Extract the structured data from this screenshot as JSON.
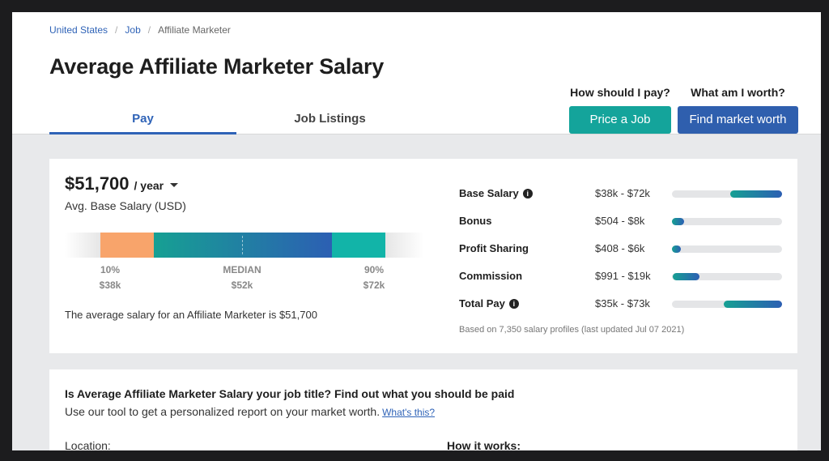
{
  "breadcrumb": {
    "items": [
      "United States",
      "Job"
    ],
    "current": "Affiliate Marketer",
    "separator": "/"
  },
  "page": {
    "title": "Average Affiliate Marketer Salary"
  },
  "tabs": [
    {
      "label": "Pay",
      "active": true
    },
    {
      "label": "Job Listings",
      "active": false
    }
  ],
  "cta": {
    "price": {
      "question": "How should I pay?",
      "button": "Price a Job",
      "color": "#14a49b"
    },
    "worth": {
      "question": "What am I worth?",
      "button": "Find market worth",
      "color": "#2f5fae"
    }
  },
  "summary": {
    "salary": "$51,700",
    "period": "/ year",
    "avg_label": "Avg. Base Salary (USD)",
    "range_ticks": [
      {
        "label": "10%",
        "value": "$38k"
      },
      {
        "label": "MEDIAN",
        "value": "$52k"
      },
      {
        "label": "90%",
        "value": "$72k"
      }
    ],
    "average_text": "The average salary for an Affiliate Marketer is $51,700"
  },
  "breakdown": {
    "rows": [
      {
        "label": "Base Salary",
        "info": true,
        "value": "$38k - $72k",
        "bar_start": 0.53,
        "bar_end": 1.0
      },
      {
        "label": "Bonus",
        "info": false,
        "value": "$504 - $8k",
        "bar_start": 0.0,
        "bar_end": 0.11
      },
      {
        "label": "Profit Sharing",
        "info": false,
        "value": "$408 - $6k",
        "bar_start": 0.0,
        "bar_end": 0.08
      },
      {
        "label": "Commission",
        "info": false,
        "value": "$991 - $19k",
        "bar_start": 0.01,
        "bar_end": 0.25
      },
      {
        "label": "Total Pay",
        "info": true,
        "value": "$35k - $73k",
        "bar_start": 0.47,
        "bar_end": 1.0
      }
    ],
    "footnote": "Based on 7,350 salary profiles (last updated Jul 07 2021)"
  },
  "report": {
    "title": "Is Average Affiliate Marketer Salary your job title? Find out what you should be paid",
    "subtitle": "Use our tool to get a personalized report on your market worth.",
    "link": "What's this?",
    "location_label": "Location:",
    "how_label": "How it works:"
  },
  "colors": {
    "accent": "#2f63b7",
    "teal": "#14a49b",
    "orange": "#f8a46b"
  }
}
